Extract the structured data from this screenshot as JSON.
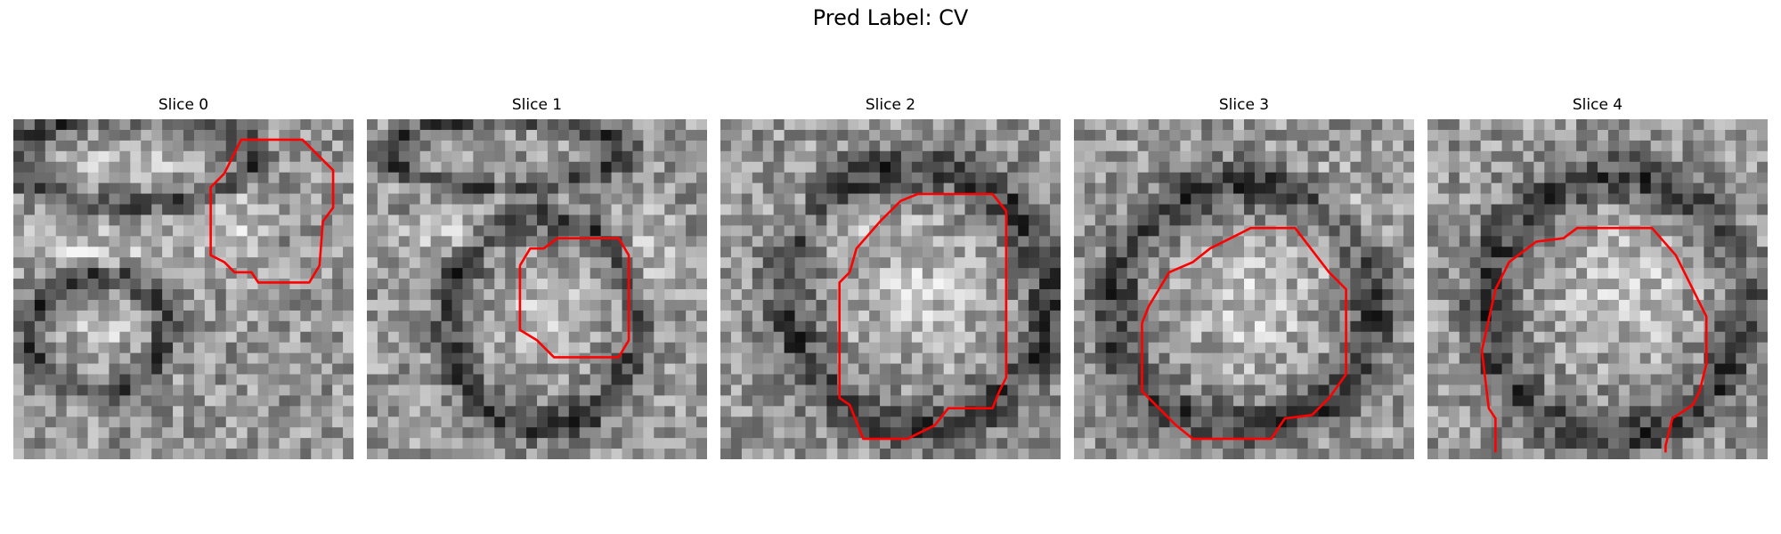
{
  "figure": {
    "title": "Pred Label: CV"
  },
  "colors": {
    "contour": "#ff0000",
    "background": "#ffffff"
  },
  "panels": [
    {
      "title": "Slice 0"
    },
    {
      "title": "Slice 1"
    },
    {
      "title": "Slice 2"
    },
    {
      "title": "Slice 3"
    },
    {
      "title": "Slice 4"
    }
  ]
}
